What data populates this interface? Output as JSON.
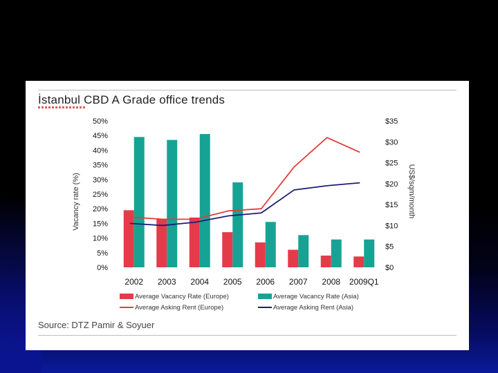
{
  "chart_data": {
    "type": "bar",
    "title": "İstanbul CBD A Grade office trends",
    "categories": [
      "2002",
      "2003",
      "2004",
      "2005",
      "2006",
      "2007",
      "2008",
      "2009Q1"
    ],
    "ylabel_left": "Vacancy rate (%)",
    "ylabel_right": "US$/sqm/month",
    "ylim_left": [
      0,
      50
    ],
    "ylim_right": [
      0,
      35
    ],
    "left_ticks": [
      "0%",
      "5%",
      "10%",
      "15%",
      "20%",
      "25%",
      "30%",
      "35%",
      "40%",
      "45%",
      "50%"
    ],
    "right_ticks": [
      "$0",
      "$5",
      "$10",
      "$15",
      "$20",
      "$25",
      "$30",
      "$35"
    ],
    "bar_series": [
      {
        "name": "Average Vacancy Rate (Europe)",
        "color": "#e43b4a",
        "values": [
          19.5,
          16.5,
          17,
          12,
          8.5,
          6,
          4,
          3.7
        ]
      },
      {
        "name": "Average Vacancy Rate (Asia)",
        "color": "#16a394",
        "values": [
          44.5,
          43.5,
          45.5,
          29,
          15.5,
          11,
          9.5,
          9.5
        ]
      }
    ],
    "line_series": [
      {
        "name": "Average Asking Rent (Europe)",
        "color": "#e43b3b",
        "values": [
          12,
          11.5,
          11.5,
          13.5,
          14,
          24,
          31,
          27.5
        ]
      },
      {
        "name": "Average Asking Rent (Asia)",
        "color": "#1c1c7a",
        "values": [
          10.5,
          10,
          10.8,
          12.3,
          13,
          18.5,
          19.5,
          20.2
        ]
      }
    ],
    "legend_position": "bottom",
    "grid": false
  },
  "source": "Source: DTZ Pamir & Soyuer"
}
